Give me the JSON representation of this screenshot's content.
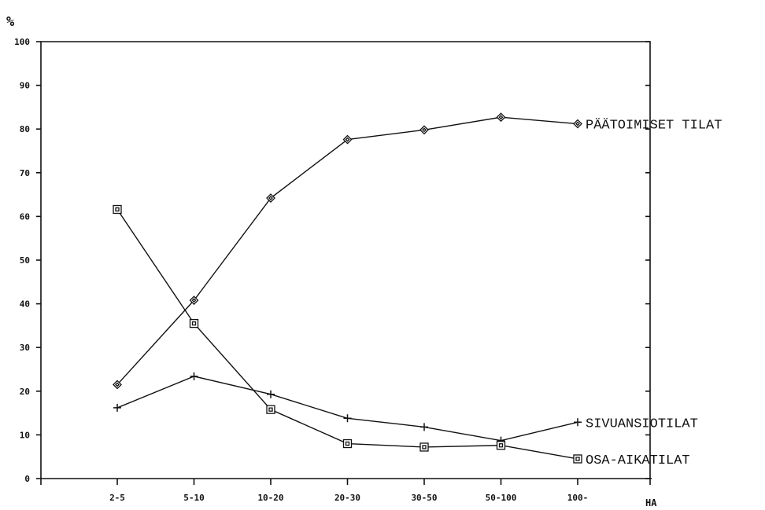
{
  "chart_data": {
    "type": "line",
    "title": "",
    "ylabel": "%",
    "xlabel": "HA",
    "ylim": [
      0,
      100
    ],
    "yticks": [
      "0",
      "10",
      "20",
      "30",
      "40",
      "50",
      "60",
      "70",
      "80",
      "90",
      "100"
    ],
    "categories": [
      "2-5",
      "5-10",
      "10-20",
      "20-30",
      "30-50",
      "50-100",
      "100-"
    ],
    "series": [
      {
        "name": "PÄÄTOIMISET TILAT",
        "marker": "diamond",
        "values": [
          21.5,
          40.8,
          64.2,
          77.6,
          79.8,
          82.7,
          81.2
        ]
      },
      {
        "name": "SIVUANSIOTILAT",
        "marker": "plus",
        "values": [
          16.2,
          23.4,
          19.3,
          13.8,
          11.8,
          8.7,
          12.9
        ]
      },
      {
        "name": "OSA-AIKATILAT",
        "marker": "square",
        "values": [
          61.6,
          35.5,
          15.8,
          8.0,
          7.2,
          7.6,
          4.5
        ]
      }
    ],
    "grid": false,
    "legend": "inline-right"
  }
}
